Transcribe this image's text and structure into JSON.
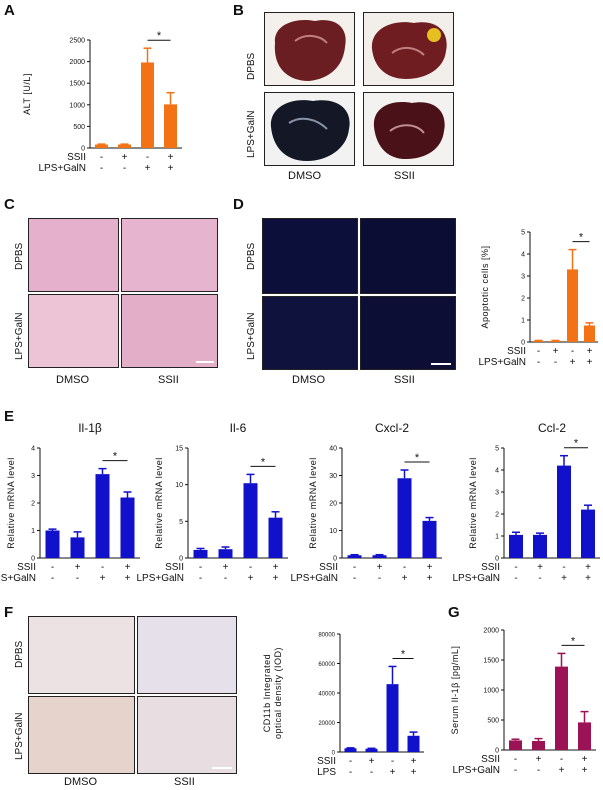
{
  "panels": {
    "a": "A",
    "b": "B",
    "c": "C",
    "d": "D",
    "e": "E",
    "f": "F",
    "g": "G"
  },
  "row_labels": {
    "dpbs": "DPBS",
    "lps_galn": "LPS+GalN"
  },
  "col_labels": {
    "dmso": "DMSO",
    "ssii": "SSII"
  },
  "treatment_rows": {
    "ssii": "SSII",
    "lps_galn": "LPS+GalN",
    "lps": "LPS",
    "ssii_signs": [
      "-",
      "+",
      "-",
      "+"
    ],
    "lps_signs": [
      "-",
      "-",
      "+",
      "+"
    ]
  },
  "sig_marker": "*",
  "colors": {
    "orange": "#f47216",
    "blue": "#1111cc",
    "maroon": "#9b1356",
    "he_bg": "#e7b3cf",
    "fluor_bg": "#0a0a2e",
    "ihc_bg": "#e8dde0"
  },
  "chart_data": [
    {
      "id": "A",
      "type": "bar",
      "title": "",
      "ylabel": "ALT [U/L]",
      "xlabel": "",
      "categories": [
        "DPBS/DMSO",
        "DPBS/SSII",
        "LPS+GalN/DMSO",
        "LPS+GalN/SSII"
      ],
      "values": [
        80,
        80,
        1980,
        1010
      ],
      "errors": [
        10,
        10,
        330,
        270
      ],
      "ylim": [
        0,
        2500
      ],
      "yticks": [
        0,
        500,
        1000,
        1500,
        2000,
        2500
      ],
      "ytick_labels": [
        "0",
        "500",
        "1000",
        "1500",
        "2000",
        "2500"
      ],
      "color": "#f47216",
      "significance": [
        2,
        3
      ]
    },
    {
      "id": "D",
      "type": "bar",
      "title": "",
      "ylabel": "Apoptotic cells [%]",
      "xlabel": "",
      "categories": [
        "DPBS/DMSO",
        "DPBS/SSII",
        "LPS+GalN/DMSO",
        "LPS+GalN/SSII"
      ],
      "values": [
        0.05,
        0.05,
        3.3,
        0.75
      ],
      "errors": [
        0.02,
        0.02,
        0.9,
        0.12
      ],
      "ylim": [
        0,
        5
      ],
      "yticks": [
        0,
        1,
        2,
        3,
        4,
        5
      ],
      "ytick_labels": [
        "0",
        "1",
        "2",
        "3",
        "4",
        "5"
      ],
      "color": "#f47216",
      "significance": [
        2,
        3
      ]
    },
    {
      "id": "E1",
      "type": "bar",
      "title": "Il-1β",
      "ylabel": "Relative mRNA level",
      "xlabel": "",
      "categories": [
        "DPBS/DMSO",
        "DPBS/SSII",
        "LPS+GalN/DMSO",
        "LPS+GalN/SSII"
      ],
      "values": [
        1.0,
        0.75,
        3.05,
        2.2
      ],
      "errors": [
        0.05,
        0.2,
        0.2,
        0.2
      ],
      "ylim": [
        0,
        4
      ],
      "yticks": [
        0,
        1,
        2,
        3,
        4
      ],
      "ytick_labels": [
        "0",
        "1",
        "2",
        "3",
        "4"
      ],
      "color": "#1111cc",
      "significance": [
        2,
        3
      ]
    },
    {
      "id": "E2",
      "type": "bar",
      "title": "Il-6",
      "ylabel": "Relative mRNA level",
      "xlabel": "",
      "categories": [
        "DPBS/DMSO",
        "DPBS/SSII",
        "LPS+GalN/DMSO",
        "LPS+GalN/SSII"
      ],
      "values": [
        1.1,
        1.2,
        10.2,
        5.5
      ],
      "errors": [
        0.2,
        0.3,
        1.2,
        0.8
      ],
      "ylim": [
        0,
        15
      ],
      "yticks": [
        0,
        5,
        10,
        15
      ],
      "ytick_labels": [
        "0",
        "5",
        "10",
        "15"
      ],
      "color": "#1111cc",
      "significance": [
        2,
        3
      ]
    },
    {
      "id": "E3",
      "type": "bar",
      "title": "Cxcl-2",
      "ylabel": "Relative mRNA level",
      "xlabel": "",
      "categories": [
        "DPBS/DMSO",
        "DPBS/SSII",
        "LPS+GalN/DMSO",
        "LPS+GalN/SSII"
      ],
      "values": [
        1.0,
        1.0,
        29,
        13.5
      ],
      "errors": [
        0.2,
        0.2,
        3,
        1.2
      ],
      "ylim": [
        0,
        40
      ],
      "yticks": [
        0,
        10,
        20,
        30,
        40
      ],
      "ytick_labels": [
        "0",
        "10",
        "20",
        "30",
        "40"
      ],
      "color": "#1111cc",
      "significance": [
        2,
        3
      ]
    },
    {
      "id": "E4",
      "type": "bar",
      "title": "Ccl-2",
      "ylabel": "Relative mRNA level",
      "xlabel": "",
      "categories": [
        "DPBS/DMSO",
        "DPBS/SSII",
        "LPS+GalN/DMSO",
        "LPS+GalN/SSII"
      ],
      "values": [
        1.05,
        1.05,
        4.2,
        2.2
      ],
      "errors": [
        0.12,
        0.08,
        0.45,
        0.2
      ],
      "ylim": [
        0,
        5
      ],
      "yticks": [
        0,
        1,
        2,
        3,
        4,
        5
      ],
      "ytick_labels": [
        "0",
        "1",
        "2",
        "3",
        "4",
        "5"
      ],
      "color": "#1111cc",
      "significance": [
        2,
        3
      ]
    },
    {
      "id": "F",
      "type": "bar",
      "title": "",
      "ylabel": "CD11b Integrated optical density (IOD)",
      "xlabel": "",
      "categories": [
        "DPBS/DMSO",
        "DPBS/SSII",
        "LPS/DMSO",
        "LPS/SSII"
      ],
      "values": [
        2500,
        2200,
        46000,
        11000
      ],
      "errors": [
        300,
        300,
        12000,
        2500
      ],
      "ylim": [
        0,
        80000
      ],
      "yticks": [
        0,
        20000,
        40000,
        60000,
        80000
      ],
      "ytick_labels": [
        "0",
        "20000",
        "40000",
        "60000",
        "80000"
      ],
      "color": "#1111cc",
      "significance": [
        2,
        3
      ]
    },
    {
      "id": "G",
      "type": "bar",
      "title": "",
      "ylabel": "Serum Il-1β [pg/mL]",
      "xlabel": "",
      "categories": [
        "DPBS/DMSO",
        "DPBS/SSII",
        "LPS+GalN/DMSO",
        "LPS+GalN/SSII"
      ],
      "values": [
        160,
        150,
        1390,
        460
      ],
      "errors": [
        20,
        40,
        220,
        180
      ],
      "ylim": [
        0,
        2000
      ],
      "yticks": [
        0,
        500,
        1000,
        1500,
        2000
      ],
      "ytick_labels": [
        "0",
        "500",
        "1000",
        "1500",
        "2000"
      ],
      "color": "#9b1356",
      "significance": [
        2,
        3
      ]
    }
  ]
}
